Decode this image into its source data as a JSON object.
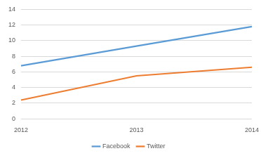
{
  "chart_data": {
    "type": "line",
    "categories": [
      "2012",
      "2013",
      "2014"
    ],
    "series": [
      {
        "name": "Facebook",
        "color": "#5b9bd5",
        "values": [
          6.8,
          9.3,
          11.8
        ]
      },
      {
        "name": "Twitter",
        "color": "#ed7d31",
        "values": [
          2.4,
          5.5,
          6.6
        ]
      }
    ],
    "ylim": [
      0,
      14
    ],
    "yticks": [
      0,
      2,
      4,
      6,
      8,
      10,
      12,
      14
    ],
    "grid": true,
    "legend": "bottom"
  }
}
